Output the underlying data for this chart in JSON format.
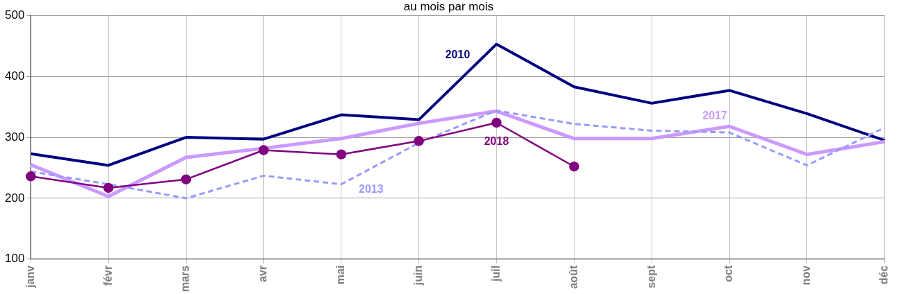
{
  "chart_data": {
    "type": "line",
    "title": "au mois par mois",
    "categories": [
      "janv",
      "févr",
      "mars",
      "avr",
      "mai",
      "juin",
      "juil",
      "août",
      "sept",
      "oct",
      "nov",
      "déc"
    ],
    "series": [
      {
        "name": "2010",
        "color": "#000080",
        "line_style": "solid",
        "marker": "none",
        "values": [
          273,
          254,
          300,
          297,
          337,
          329,
          453,
          383,
          356,
          377,
          339,
          295
        ]
      },
      {
        "name": "2017",
        "color": "#cc99ff",
        "line_style": "solid",
        "marker": "none",
        "values": [
          255,
          203,
          267,
          282,
          298,
          323,
          343,
          298,
          298,
          318,
          272,
          293
        ]
      },
      {
        "name": "2013",
        "color": "#9999ff",
        "line_style": "dashed",
        "marker": "none",
        "values": [
          244,
          223,
          200,
          237,
          223,
          291,
          344,
          322,
          311,
          308,
          254,
          316
        ]
      },
      {
        "name": "2018",
        "color": "#800080",
        "line_style": "solid",
        "marker": "circle",
        "values": [
          236,
          217,
          231,
          279,
          272,
          294,
          324,
          252,
          null,
          null,
          null,
          null
        ]
      }
    ],
    "ylim": [
      100,
      500
    ],
    "yticks": [
      100,
      200,
      300,
      400,
      500
    ],
    "grid": true,
    "legend": false
  }
}
